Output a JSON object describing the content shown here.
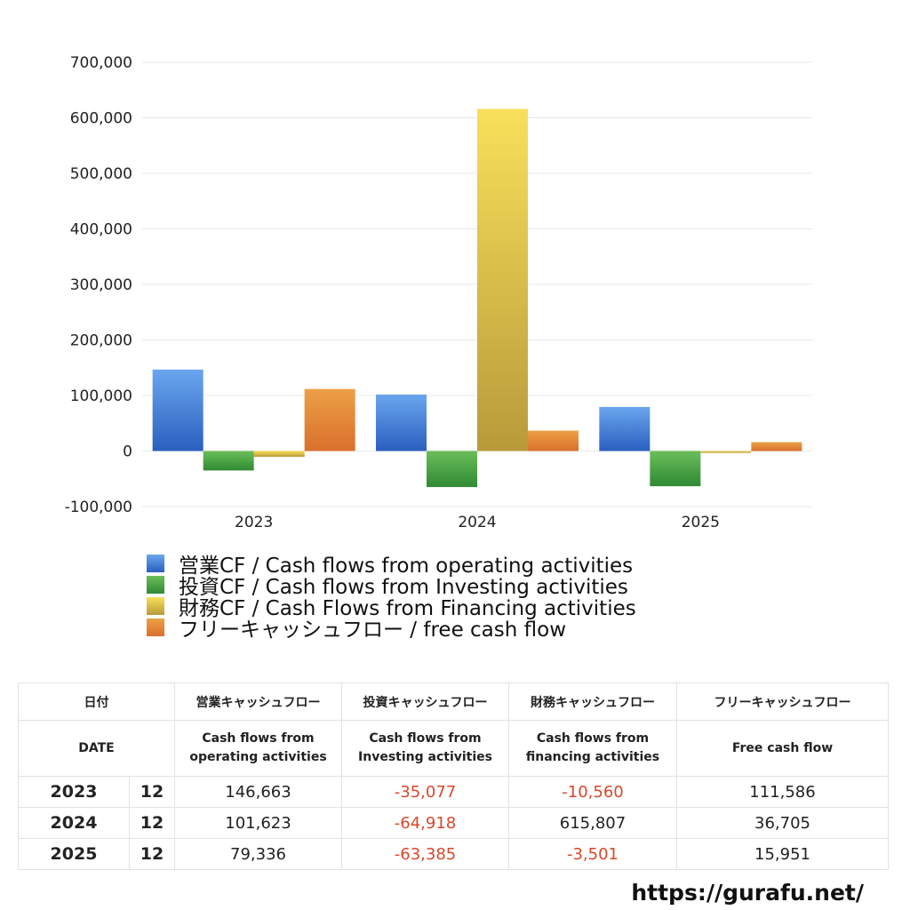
{
  "chart_data": {
    "type": "bar",
    "categories": [
      "2023",
      "2024",
      "2025"
    ],
    "ylim": [
      -100000,
      700000
    ],
    "yticks": [
      700000,
      600000,
      500000,
      400000,
      300000,
      200000,
      100000,
      0,
      -100000
    ],
    "ytick_labels": [
      "700,000",
      "600,000",
      "500,000",
      "400,000",
      "300,000",
      "200,000",
      "100,000",
      "0",
      "-100,000"
    ],
    "grid": true,
    "legend_position": "bottom",
    "series": [
      {
        "name": "営業CF / Cash flows from operating activities",
        "values": [
          146663,
          101623,
          79336
        ],
        "color_top": "#6aa6ee",
        "color_bottom": "#2a5fbf"
      },
      {
        "name": "投資CF / Cash flows from Investing activities",
        "values": [
          -35077,
          -64918,
          -63385
        ],
        "color_top": "#6cbe5a",
        "color_bottom": "#2f8a33"
      },
      {
        "name": "財務CF / Cash Flows from Financing activities",
        "values": [
          -10560,
          615807,
          -3501
        ],
        "color_top": "#f8e05a",
        "color_bottom": "#b89a3a"
      },
      {
        "name": "フリーキャッシュフロー / free cash flow",
        "values": [
          111586,
          36705,
          15951
        ],
        "color_top": "#eda046",
        "color_bottom": "#d9702c"
      }
    ]
  },
  "table": {
    "header_jp": [
      "日付",
      "営業キャッシュフロー",
      "投資キャッシュフロー",
      "財務キャッシュフロー",
      "フリーキャッシュフロー"
    ],
    "header_en": [
      "DATE",
      "Cash flows from\noperating activities",
      "Cash flows from\nInvesting activities",
      "Cash flows from\nfinancing activities",
      "Free cash flow"
    ],
    "rows": [
      {
        "year": "2023",
        "month": "12",
        "op": "146,663",
        "inv": "-35,077",
        "fin": "-10,560",
        "free": "111,586"
      },
      {
        "year": "2024",
        "month": "12",
        "op": "101,623",
        "inv": "-64,918",
        "fin": "615,807",
        "free": "36,705"
      },
      {
        "year": "2025",
        "month": "12",
        "op": "79,336",
        "inv": "-63,385",
        "fin": "-3,501",
        "free": "15,951"
      }
    ]
  },
  "footer": {
    "url": "https://gurafu.net/"
  }
}
